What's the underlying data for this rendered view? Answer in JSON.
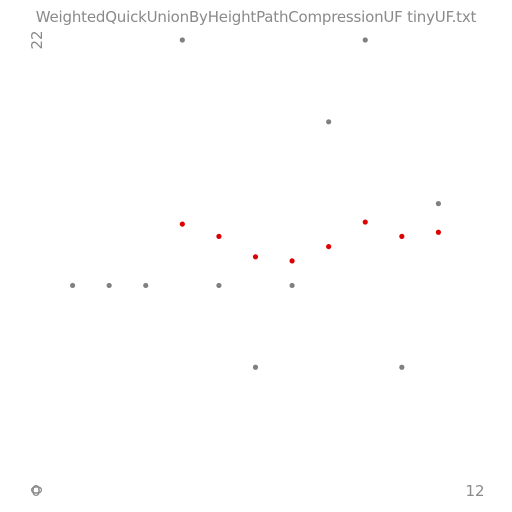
{
  "chart_data": {
    "type": "scatter",
    "title": "WeightedQuickUnionByHeightPathCompressionUF tinyUF.txt",
    "xlim": [
      0,
      12
    ],
    "ylim": [
      0,
      22
    ],
    "x_tick_labels": [
      "0",
      "12"
    ],
    "y_tick_labels": [
      "0",
      "22"
    ],
    "grid": false,
    "series": [
      {
        "color": "#808080",
        "points": [
          [
            1,
            10
          ],
          [
            2,
            10
          ],
          [
            3,
            10
          ],
          [
            4,
            22
          ],
          [
            5,
            10
          ],
          [
            6,
            6
          ],
          [
            7,
            10
          ],
          [
            8,
            18
          ],
          [
            9,
            22
          ],
          [
            10,
            6
          ],
          [
            11,
            14
          ]
        ]
      },
      {
        "color": "#dd0000",
        "points": [
          [
            4,
            13
          ],
          [
            5,
            12.4
          ],
          [
            6,
            11.4
          ],
          [
            7,
            11.2
          ],
          [
            8,
            11.9
          ],
          [
            9,
            13.1
          ],
          [
            10,
            12.4
          ],
          [
            11,
            12.6
          ]
        ]
      }
    ]
  }
}
